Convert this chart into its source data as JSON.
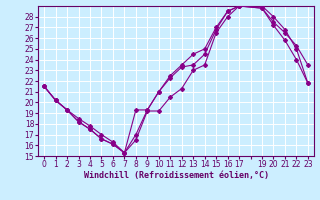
{
  "xlabel": "Windchill (Refroidissement éolien,°C)",
  "bg_color": "#cceeff",
  "grid_color": "#ffffff",
  "line_color": "#880088",
  "marker": "D",
  "markersize": 2,
  "linewidth": 0.8,
  "xlim": [
    -0.5,
    23.5
  ],
  "ylim": [
    15,
    29
  ],
  "xticks": [
    0,
    1,
    2,
    3,
    4,
    5,
    6,
    7,
    8,
    9,
    10,
    11,
    12,
    13,
    14,
    15,
    16,
    17,
    19,
    20,
    21,
    22,
    23
  ],
  "yticks": [
    15,
    16,
    17,
    18,
    19,
    20,
    21,
    22,
    23,
    24,
    25,
    26,
    27,
    28
  ],
  "series1_x": [
    0,
    1,
    2,
    3,
    4,
    5,
    6,
    7,
    8,
    9,
    10,
    11,
    12,
    13,
    14,
    15,
    16,
    17,
    19,
    20,
    21,
    22,
    23
  ],
  "series1_y": [
    21.5,
    20.2,
    19.3,
    18.2,
    17.5,
    16.6,
    16.1,
    15.3,
    16.5,
    19.2,
    19.2,
    20.5,
    21.3,
    23.0,
    23.5,
    26.5,
    28.0,
    29.0,
    28.8,
    27.5,
    26.5,
    25.3,
    23.5
  ],
  "series2_x": [
    0,
    1,
    2,
    3,
    4,
    5,
    6,
    7,
    8,
    9,
    10,
    11,
    12,
    13,
    14,
    15,
    16,
    17,
    19,
    20,
    21,
    22,
    23
  ],
  "series2_y": [
    21.5,
    20.2,
    19.3,
    18.2,
    17.5,
    16.6,
    16.1,
    15.3,
    19.3,
    19.3,
    21.0,
    22.3,
    23.3,
    23.5,
    24.5,
    26.8,
    28.5,
    29.0,
    28.8,
    27.2,
    25.8,
    24.0,
    21.8
  ],
  "series3_x": [
    0,
    1,
    2,
    3,
    4,
    5,
    6,
    7,
    8,
    9,
    10,
    11,
    12,
    13,
    14,
    15,
    16,
    17,
    19,
    20,
    21,
    22,
    23
  ],
  "series3_y": [
    21.5,
    20.2,
    19.3,
    18.5,
    17.8,
    17.0,
    16.3,
    15.3,
    17.0,
    19.3,
    21.0,
    22.5,
    23.5,
    24.5,
    25.0,
    27.0,
    28.5,
    29.0,
    29.0,
    28.0,
    26.8,
    25.0,
    21.8
  ],
  "tick_fontsize": 5.5,
  "xlabel_fontsize": 6.0
}
